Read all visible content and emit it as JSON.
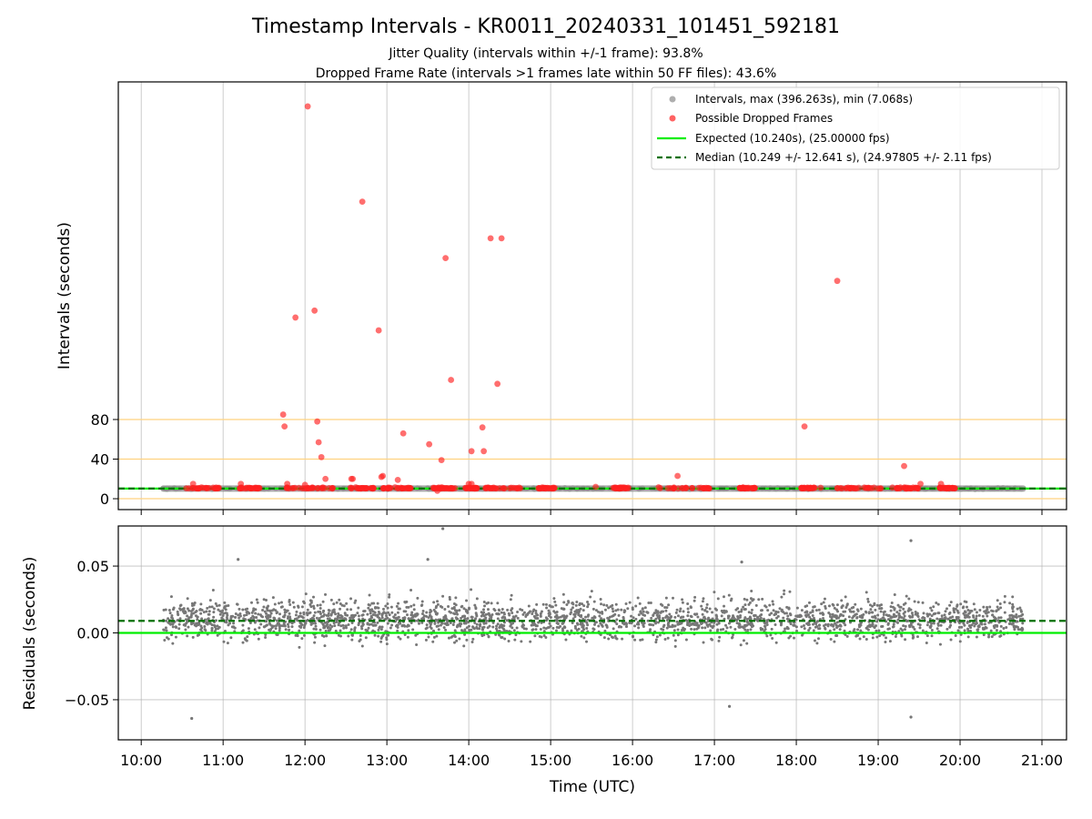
{
  "chart_data": [
    {
      "type": "scatter",
      "title": "Timestamp Intervals - KR0011_20240331_101451_592181",
      "subtitle_lines": [
        "Jitter Quality (intervals within +/-1 frame): 93.8%",
        "Dropped Frame Rate (intervals >1 frames late within 50 FF files): 43.6%"
      ],
      "ylabel": "Intervals (seconds)",
      "ylim": [
        -11,
        421
      ],
      "y_ticks": [
        0,
        40,
        80
      ],
      "y_tick_labels": [
        "0",
        "40",
        "80"
      ],
      "reference_lines_y": [
        0,
        40,
        80
      ],
      "reference_line_color": "#ffd27f",
      "xlim_hours": [
        9.72,
        21.3
      ],
      "grid": "vertical",
      "legend_position": "top-right",
      "legend": [
        {
          "label": "Intervals, max (396.263s), min (7.068s)",
          "marker": "dot",
          "color": "#8c8c8c"
        },
        {
          "label": "Possible Dropped Frames",
          "marker": "dot",
          "color": "#ff2020"
        },
        {
          "label": "Expected (10.240s), (25.00000 fps)",
          "marker": "line",
          "color": "#00ee00"
        },
        {
          "label": "Median (10.249 +/- 12.641 s), (24.97805 +/- 2.11 fps)",
          "marker": "dashed",
          "color": "#007000"
        }
      ],
      "expected_interval": 10.24,
      "median_interval": 10.249,
      "interval_series": {
        "name": "Intervals",
        "x_range_hours": [
          10.27,
          20.77
        ],
        "typical_value": 10.24,
        "color": "#8c8c8c"
      },
      "dropped_frames": {
        "name": "Possible Dropped Frames",
        "color": "#ff2020",
        "x": [
          "12:02",
          "11:44",
          "11:45",
          "12:09",
          "12:10",
          "12:12",
          "12:42",
          "12:54",
          "11:53",
          "12:07",
          "13:12",
          "13:47",
          "13:43",
          "14:16",
          "14:02",
          "14:10",
          "14:11",
          "14:21",
          "14:24",
          "18:30",
          "18:06",
          "13:40",
          "14:00",
          "12:57",
          "13:31",
          "13:37",
          "12:35",
          "12:15",
          "12:00",
          "12:56",
          "13:08",
          "16:33",
          "19:19",
          "19:31",
          "19:46",
          "11:13",
          "10:38",
          "11:47",
          "12:34",
          "14:02",
          "15:33"
        ],
        "y": [
          396.263,
          85,
          73,
          78,
          57,
          42,
          300,
          170,
          183,
          190,
          66,
          120,
          243,
          263,
          48,
          72,
          48,
          116,
          263,
          220,
          73,
          39,
          15,
          23,
          55,
          8,
          20,
          20,
          14,
          22,
          19,
          23,
          33,
          15,
          15,
          15,
          15,
          15,
          20,
          15,
          12
        ]
      }
    },
    {
      "type": "scatter",
      "ylabel": "Residuals (seconds)",
      "xlabel": "Time (UTC)",
      "ylim": [
        -0.08,
        0.08
      ],
      "y_ticks": [
        0.05,
        0.0,
        -0.05
      ],
      "y_tick_labels": [
        "0.05",
        "0.00",
        "−0.05"
      ],
      "x_ticks": [
        "10:00",
        "11:00",
        "12:00",
        "13:00",
        "14:00",
        "15:00",
        "16:00",
        "17:00",
        "18:00",
        "19:00",
        "20:00",
        "21:00"
      ],
      "xlim_hours": [
        9.72,
        21.3
      ],
      "grid": "both",
      "expected_residual": 0.0,
      "median_residual": 0.009,
      "residual_series": {
        "name": "Residuals",
        "x_range_hours": [
          10.27,
          20.77
        ],
        "typical_range": [
          -0.03,
          0.05
        ],
        "color": "#777777",
        "outliers": [
          {
            "x": "13:41",
            "y": 0.078
          },
          {
            "x": "13:30",
            "y": 0.055
          },
          {
            "x": "11:11",
            "y": 0.055
          },
          {
            "x": "17:20",
            "y": 0.053
          },
          {
            "x": "19:24",
            "y": 0.069
          },
          {
            "x": "17:11",
            "y": -0.055
          },
          {
            "x": "19:24",
            "y": -0.063
          },
          {
            "x": "10:37",
            "y": -0.064
          }
        ]
      }
    }
  ]
}
